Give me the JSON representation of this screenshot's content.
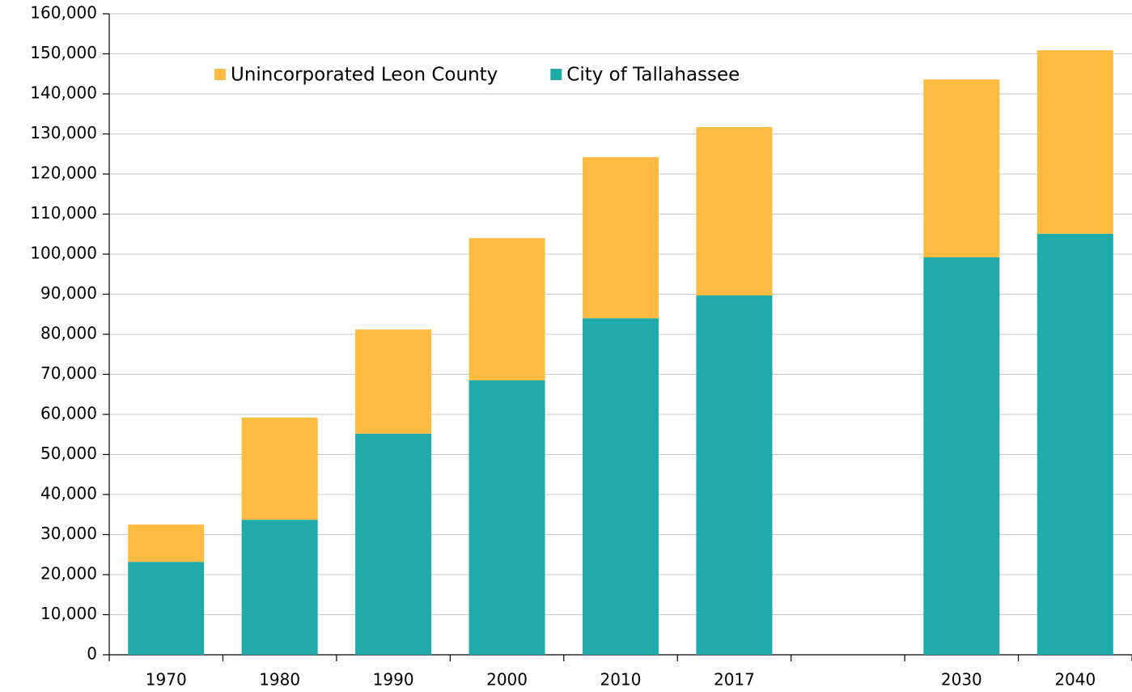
{
  "chart_data": {
    "type": "stacked_bar",
    "categories": [
      "1970",
      "1980",
      "1990",
      "2000",
      "2010",
      "2017",
      null,
      "2030",
      "2040"
    ],
    "series": [
      {
        "name": "Unincorporated Leon County",
        "color": "#fdbb41",
        "values": [
          9300,
          25500,
          26000,
          35500,
          40200,
          42000,
          null,
          44400,
          45800
        ]
      },
      {
        "name": "City of Tallahassee",
        "color": "#20aaaa",
        "values": [
          23200,
          33700,
          55200,
          68500,
          84000,
          89700,
          null,
          99200,
          105100
        ]
      }
    ],
    "ylim": [
      0,
      160000
    ],
    "yticks": [
      0,
      {
        "value": 10000,
        "label": "10,000"
      },
      {
        "value": 20000,
        "label": "20,000"
      },
      {
        "value": 30000,
        "label": "30,000"
      },
      {
        "value": 40000,
        "label": "40,000"
      },
      {
        "value": 50000,
        "label": "50,000"
      },
      {
        "value": 60000,
        "label": "60,000"
      },
      {
        "value": 70000,
        "label": "70,000"
      },
      {
        "value": 80000,
        "label": "80,000"
      },
      {
        "value": 90000,
        "label": "90,000"
      },
      {
        "value": 100000,
        "label": "100,000"
      },
      {
        "value": 110000,
        "label": "110,000"
      },
      {
        "value": 120000,
        "label": "120,000"
      },
      {
        "value": 130000,
        "label": "130,000"
      },
      {
        "value": 140000,
        "label": "140,000"
      },
      {
        "value": 150000,
        "label": "150,000"
      },
      {
        "value": 160000,
        "label": "160,000"
      }
    ],
    "grid": true,
    "legend": "top-left"
  }
}
